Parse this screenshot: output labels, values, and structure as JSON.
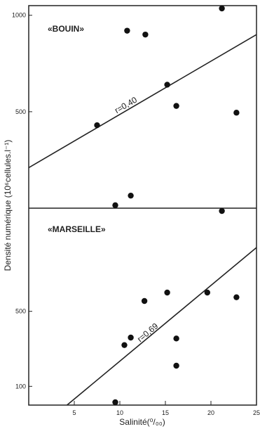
{
  "chart_data": {
    "type": "scatter",
    "xlabel": "Salinité(⁰/₀₀)",
    "ylabel": "Densité numérique (10⁶cellules.l⁻¹)",
    "xlim": [
      0,
      25
    ],
    "x_ticks": [
      "5",
      "10",
      "15",
      "20",
      "25"
    ],
    "panels": [
      {
        "title": "«BOUIN»",
        "ylim": [
          0,
          1050
        ],
        "y_ticks": [
          {
            "value": 1000,
            "label": "1000"
          },
          {
            "value": 500,
            "label": "500"
          }
        ],
        "points": [
          {
            "x": 7.5,
            "y": 430
          },
          {
            "x": 9.5,
            "y": 15
          },
          {
            "x": 10.8,
            "y": 920
          },
          {
            "x": 11.2,
            "y": 65
          },
          {
            "x": 12.8,
            "y": 900
          },
          {
            "x": 15.2,
            "y": 640
          },
          {
            "x": 16.2,
            "y": 530
          },
          {
            "x": 21.2,
            "y": 1045
          },
          {
            "x": 22.8,
            "y": 495
          }
        ],
        "fit_line": {
          "x": [
            0,
            25
          ],
          "y": [
            210,
            900
          ],
          "label": "r=0,40"
        }
      },
      {
        "title": "«MARSEILLE»",
        "ylim": [
          0,
          1050
        ],
        "y_ticks": [
          {
            "value": 500,
            "label": "500"
          },
          {
            "value": 100,
            "label": "100"
          }
        ],
        "points": [
          {
            "x": 9.5,
            "y": 10
          },
          {
            "x": 10.5,
            "y": 320
          },
          {
            "x": 11.2,
            "y": 360
          },
          {
            "x": 12.7,
            "y": 555
          },
          {
            "x": 15.2,
            "y": 600
          },
          {
            "x": 16.2,
            "y": 210
          },
          {
            "x": 16.2,
            "y": 355
          },
          {
            "x": 19.6,
            "y": 600
          },
          {
            "x": 21.2,
            "y": 1050
          },
          {
            "x": 22.8,
            "y": 575
          }
        ],
        "fit_line": {
          "x": [
            4.2,
            25
          ],
          "y": [
            0,
            840
          ],
          "label": "r=0,69"
        }
      }
    ]
  }
}
